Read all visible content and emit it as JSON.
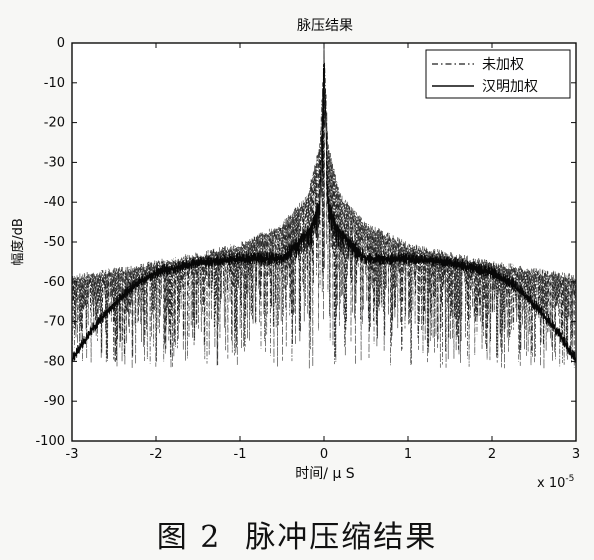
{
  "figure": {
    "caption_num": "图 2",
    "caption_text": "脉冲压缩结果"
  },
  "chart_data": {
    "type": "line",
    "title": "脉压结果",
    "xlabel": "时间/ μ S",
    "ylabel": "幅度/dB",
    "x_exponent_label": "x 10",
    "x_exponent_power": "-5",
    "xlim": [
      -3,
      3
    ],
    "ylim": [
      -100,
      0
    ],
    "x_ticks": [
      -3,
      -2,
      -1,
      0,
      1,
      2,
      3
    ],
    "y_ticks": [
      0,
      -10,
      -20,
      -30,
      -40,
      -50,
      -60,
      -70,
      -80,
      -90,
      -100
    ],
    "grid": false,
    "legend_position": "top-right",
    "series": [
      {
        "name": "未加权",
        "style": "dash-dot",
        "envelope_x": [
          -3,
          -2.5,
          -2,
          -1.5,
          -1,
          -0.5,
          -0.2,
          -0.05,
          0,
          0.05,
          0.2,
          0.5,
          1,
          1.5,
          2,
          2.5,
          3
        ],
        "envelope_y": [
          -58,
          -56.5,
          -54.5,
          -52.5,
          -50,
          -45,
          -38,
          -25,
          0,
          -25,
          -38,
          -45,
          -50,
          -52.5,
          -54.5,
          -56.5,
          -58
        ],
        "floor_y": -80
      },
      {
        "name": "汉明加权",
        "style": "solid",
        "envelope_x": [
          -3,
          -2.75,
          -2.5,
          -2.25,
          -2,
          -1.5,
          -1,
          -0.5,
          -0.15,
          -0.05,
          0,
          0.05,
          0.15,
          0.5,
          1,
          1.5,
          2,
          2.25,
          2.5,
          2.75,
          3
        ],
        "envelope_y": [
          -78,
          -70,
          -64,
          -59,
          -56,
          -53.5,
          -52.5,
          -52.5,
          -45,
          -38,
          0,
          -38,
          -45,
          -52.5,
          -52.5,
          -53.5,
          -56,
          -59,
          -64,
          -70,
          -78
        ],
        "floor_y": -55
      }
    ]
  }
}
